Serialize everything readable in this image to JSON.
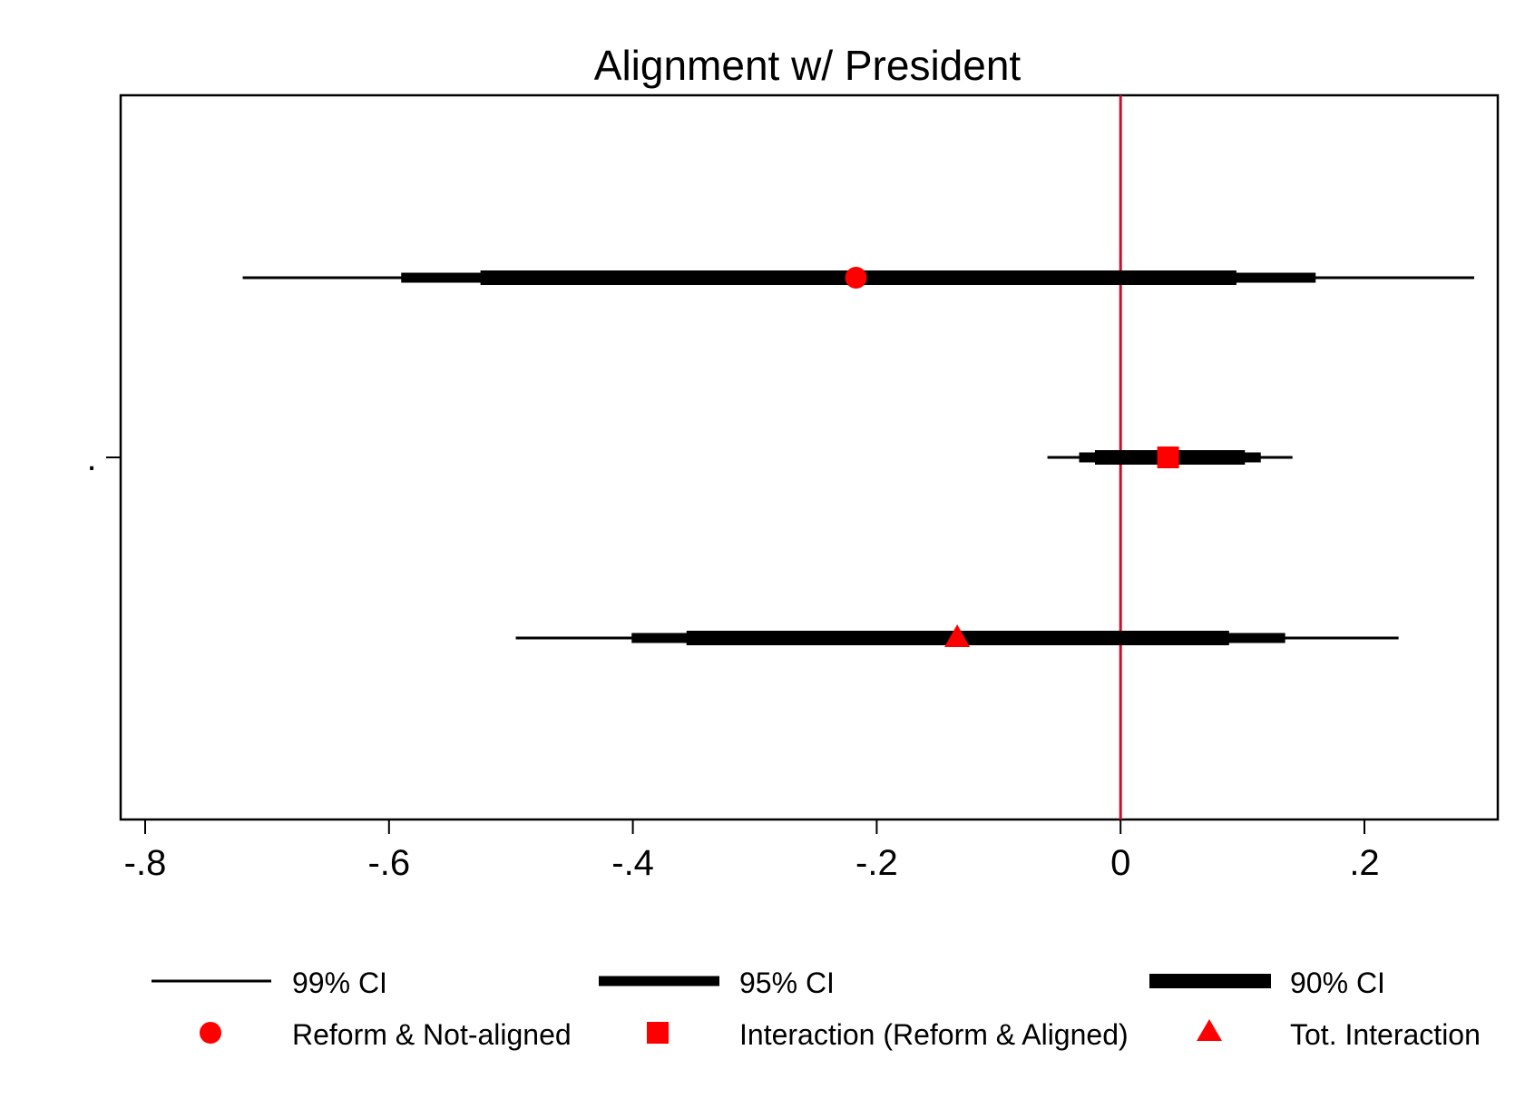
{
  "chart_data": {
    "type": "coefficient-plot",
    "title": "Alignment w/ President",
    "xlabel": "",
    "ylabel": "",
    "y_tick_label": ".",
    "xlim": [
      -0.82,
      0.31
    ],
    "x_ticks": [
      -0.8,
      -0.6,
      -0.4,
      -0.2,
      0,
      0.2
    ],
    "x_tick_labels": [
      "-.8",
      "-.6",
      "-.4",
      "-.2",
      "0",
      ".2"
    ],
    "reference_line": {
      "x": 0,
      "color": "#c8102e"
    },
    "grid": false,
    "series": [
      {
        "name": "Reform & Not-aligned",
        "marker": "circle",
        "color": "#ff0000",
        "estimate": -0.217,
        "ci99": [
          -0.72,
          0.29
        ],
        "ci95": [
          -0.59,
          0.16
        ],
        "ci90": [
          -0.525,
          0.095
        ]
      },
      {
        "name": "Interaction (Reform & Aligned)",
        "marker": "square",
        "color": "#ff0000",
        "estimate": 0.039,
        "ci99": [
          -0.06,
          0.141
        ],
        "ci95": [
          -0.034,
          0.115
        ],
        "ci90": [
          -0.021,
          0.102
        ]
      },
      {
        "name": "Tot. Interaction",
        "marker": "triangle",
        "color": "#ff0000",
        "estimate": -0.134,
        "ci99": [
          -0.496,
          0.228
        ],
        "ci95": [
          -0.401,
          0.135
        ],
        "ci90": [
          -0.356,
          0.089
        ]
      }
    ],
    "legend": {
      "position": "bottom",
      "ci_entries": [
        "99% CI",
        "95% CI",
        "90% CI"
      ],
      "marker_entries": [
        "Reform & Not-aligned",
        "Interaction (Reform & Aligned)",
        "Tot. Interaction"
      ]
    }
  }
}
